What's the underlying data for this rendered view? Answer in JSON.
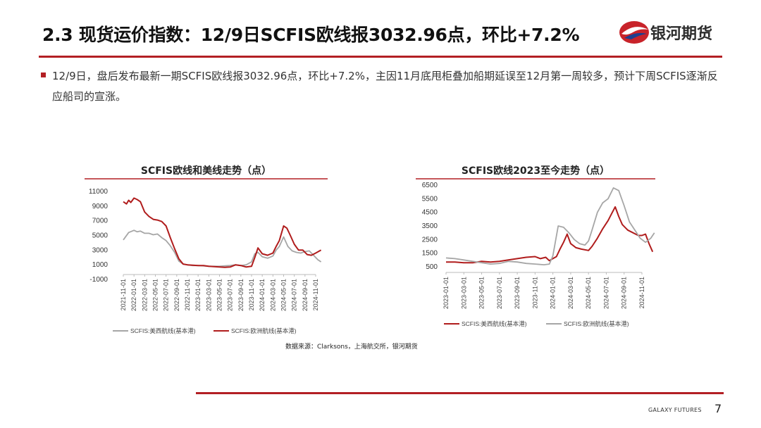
{
  "header": {
    "title": "2.3 现货运价指数：12/9日SCFIS欧线报3032.96点，环比+7.2%",
    "logo_text": "银河期货"
  },
  "bullet": {
    "text": "12/9日，盘后发布最新一期SCFIS欧线报3032.96点，环比+7.2%，主因11月底甩柜叠加船期延误至12月第一周较多，预计下周SCFIS逐渐反应船司的宣涨。"
  },
  "colors": {
    "accent": "#b31f24",
    "series_red": "#b01c1c",
    "series_gray": "#a6a6a6"
  },
  "chart_data": [
    {
      "type": "line",
      "title": "SCFIS欧线和美线走势（点）",
      "x": [
        "2021-11-01",
        "2022-01-01",
        "2022-03-01",
        "2022-05-01",
        "2022-07-01",
        "2022-09-01",
        "2022-11-01",
        "2023-01-01",
        "2023-03-01",
        "2023-05-01",
        "2023-07-01",
        "2023-09-01",
        "2023-11-01",
        "2024-01-01",
        "2024-03-01",
        "2024-05-01",
        "2024-07-01",
        "2024-09-01",
        "2024-11-01"
      ],
      "yticks": [
        "11000",
        "9000",
        "7000",
        "5000",
        "3000",
        "1000",
        "-1000"
      ],
      "ylim": [
        -1000,
        11000
      ],
      "series": [
        {
          "name": "SCFIS:美西航线(基本港)",
          "color": "#a6a6a6",
          "x": [
            0,
            0.5,
            1,
            1.3,
            1.6,
            2,
            2.4,
            2.8,
            3.2,
            3.6,
            4,
            4.4,
            4.8,
            5.2,
            5.6,
            6,
            6.5,
            7,
            7.5,
            8,
            8.5,
            9,
            9.5,
            10,
            10.5,
            11,
            11.5,
            12,
            12.3,
            12.6,
            13,
            13.5,
            14,
            14.3,
            14.6,
            15,
            15.4,
            15.8,
            16.2,
            16.6,
            17,
            17.4,
            17.8,
            18.2,
            18.5
          ],
          "values": [
            4400,
            5400,
            5700,
            5500,
            5600,
            5300,
            5300,
            5100,
            5200,
            4700,
            4300,
            3600,
            2700,
            1500,
            1100,
            1000,
            900,
            900,
            850,
            800,
            800,
            800,
            850,
            900,
            1000,
            900,
            1000,
            1400,
            2500,
            2700,
            2100,
            1900,
            2200,
            3000,
            3500,
            4800,
            3500,
            2900,
            2700,
            2600,
            2800,
            2900,
            2300,
            1700,
            1400
          ]
        },
        {
          "name": "SCFIS:欧洲航线(基本港)",
          "color": "#b01c1c",
          "x": [
            0,
            0.3,
            0.5,
            0.7,
            1,
            1.3,
            1.6,
            2,
            2.4,
            2.8,
            3.2,
            3.6,
            4,
            4.4,
            4.8,
            5.2,
            5.6,
            6,
            6.5,
            7,
            7.5,
            8,
            8.5,
            9,
            9.5,
            10,
            10.5,
            11,
            11.5,
            12,
            12.3,
            12.6,
            13,
            13.5,
            14,
            14.3,
            14.6,
            15,
            15.3,
            15.6,
            16,
            16.4,
            16.8,
            17.2,
            17.6,
            18,
            18.5
          ],
          "values": [
            9600,
            9300,
            9800,
            9500,
            10100,
            9900,
            9600,
            8200,
            7600,
            7200,
            7100,
            6900,
            6300,
            4700,
            3200,
            1800,
            1100,
            1000,
            950,
            900,
            900,
            800,
            750,
            700,
            650,
            700,
            1000,
            900,
            700,
            800,
            2000,
            3300,
            2500,
            2300,
            2600,
            3500,
            4300,
            6300,
            6000,
            5100,
            3800,
            3000,
            3000,
            2400,
            2300,
            2600,
            3000
          ]
        }
      ],
      "legend_position": "bottom"
    },
    {
      "type": "line",
      "title": "SCFIS欧线2023至今走势（点）",
      "x": [
        "2023-01-01",
        "2023-03-01",
        "2023-05-01",
        "2023-07-01",
        "2023-09-01",
        "2023-11-01",
        "2024-01-01",
        "2024-03-01",
        "2024-05-01",
        "2024-07-01",
        "2024-09-01",
        "2024-11-01"
      ],
      "yticks": [
        "6500",
        "5500",
        "4500",
        "3500",
        "2500",
        "1500",
        "500"
      ],
      "ylim": [
        500,
        6500
      ],
      "series": [
        {
          "name": "SCFIS:美西航线(基本港)",
          "color": "#b01c1c",
          "x": [
            0,
            0.5,
            1,
            1.5,
            2,
            2.5,
            3,
            3.5,
            4,
            4.5,
            5,
            5.3,
            5.6,
            5.8,
            6,
            6.2,
            6.4,
            6.6,
            6.8,
            7,
            7.3,
            7.6,
            8,
            8.2,
            8.5,
            8.8,
            9.1,
            9.3,
            9.5,
            9.7,
            9.9,
            10.2,
            10.5,
            10.8,
            11,
            11.2,
            11.4,
            11.6
          ],
          "values": [
            850,
            850,
            800,
            800,
            900,
            850,
            900,
            1000,
            1100,
            1200,
            1250,
            1100,
            1200,
            950,
            1100,
            1250,
            1800,
            2300,
            2900,
            2200,
            1900,
            1800,
            1700,
            2000,
            2600,
            3300,
            3900,
            4400,
            4900,
            4200,
            3600,
            3200,
            3000,
            2800,
            2800,
            2900,
            2200,
            1600
          ]
        },
        {
          "name": "SCFIS:欧洲航线(基本港)",
          "color": "#a6a6a6",
          "x": [
            0,
            0.5,
            1,
            1.5,
            2,
            2.5,
            3,
            3.5,
            4,
            4.5,
            5,
            5.5,
            5.8,
            6,
            6.3,
            6.6,
            6.9,
            7.2,
            7.5,
            7.8,
            8,
            8.2,
            8.5,
            8.8,
            9.1,
            9.4,
            9.7,
            10,
            10.3,
            10.6,
            10.9,
            11.2,
            11.5,
            11.7
          ],
          "values": [
            1150,
            1100,
            1000,
            900,
            800,
            700,
            750,
            900,
            850,
            750,
            700,
            650,
            700,
            1300,
            3500,
            3400,
            3000,
            2500,
            2200,
            2100,
            2400,
            3200,
            4500,
            5200,
            5500,
            6300,
            6100,
            5000,
            3800,
            3200,
            2600,
            2300,
            2600,
            3000
          ]
        }
      ],
      "legend_position": "bottom"
    }
  ],
  "source": "数据来源：Clarksons，上海航交所，银河期货",
  "footer": {
    "brand": "GALAXY FUTURES",
    "page": "7"
  }
}
